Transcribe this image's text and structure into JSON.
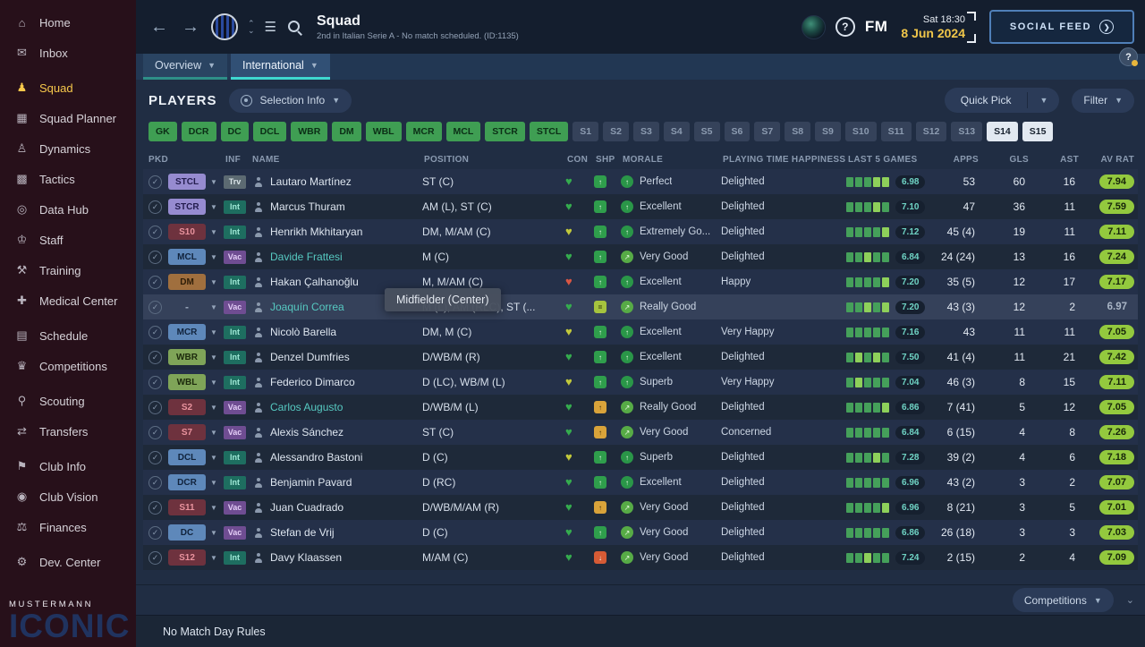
{
  "sidebar": {
    "items": [
      {
        "label": "Home",
        "icon": "home"
      },
      {
        "label": "Inbox",
        "icon": "inbox"
      },
      {
        "label": "Squad",
        "icon": "squad",
        "active": true,
        "group": true
      },
      {
        "label": "Squad Planner",
        "icon": "planner"
      },
      {
        "label": "Dynamics",
        "icon": "dynamics"
      },
      {
        "label": "Tactics",
        "icon": "tactics"
      },
      {
        "label": "Data Hub",
        "icon": "datahub"
      },
      {
        "label": "Staff",
        "icon": "staff"
      },
      {
        "label": "Training",
        "icon": "training"
      },
      {
        "label": "Medical Center",
        "icon": "medical"
      },
      {
        "label": "Schedule",
        "icon": "schedule",
        "group": true
      },
      {
        "label": "Competitions",
        "icon": "competitions"
      },
      {
        "label": "Scouting",
        "icon": "scouting",
        "group": true
      },
      {
        "label": "Transfers",
        "icon": "transfers"
      },
      {
        "label": "Club Info",
        "icon": "clubinfo",
        "group": true
      },
      {
        "label": "Club Vision",
        "icon": "clubvision"
      },
      {
        "label": "Finances",
        "icon": "finances"
      },
      {
        "label": "Dev. Center",
        "icon": "devcenter",
        "group": true
      }
    ],
    "logo_line1": "MUSTERMANN",
    "logo_line2": "ICONIC"
  },
  "header": {
    "title": "Squad",
    "subtitle": "2nd in Italian Serie A - No match scheduled. (ID:1135)",
    "fm_label": "FM",
    "help_label": "?",
    "date_line1": "Sat 18:30",
    "date_line2": "8 Jun 2024",
    "social_feed_label": "SOCIAL FEED"
  },
  "tabs": [
    {
      "label": "Overview",
      "active": false
    },
    {
      "label": "International",
      "active": true
    }
  ],
  "tab_help_label": "?",
  "toolbar": {
    "players_title": "PLAYERS",
    "selection_info_label": "Selection Info",
    "quick_pick_label": "Quick Pick",
    "filter_label": "Filter"
  },
  "chips": [
    {
      "label": "GK",
      "state": "green"
    },
    {
      "label": "DCR",
      "state": "green"
    },
    {
      "label": "DC",
      "state": "green"
    },
    {
      "label": "DCL",
      "state": "green"
    },
    {
      "label": "WBR",
      "state": "green"
    },
    {
      "label": "DM",
      "state": "green"
    },
    {
      "label": "WBL",
      "state": "green"
    },
    {
      "label": "MCR",
      "state": "green"
    },
    {
      "label": "MCL",
      "state": "green"
    },
    {
      "label": "STCR",
      "state": "green"
    },
    {
      "label": "STCL",
      "state": "green"
    },
    {
      "label": "S1",
      "state": "grey"
    },
    {
      "label": "S2",
      "state": "grey"
    },
    {
      "label": "S3",
      "state": "grey"
    },
    {
      "label": "S4",
      "state": "grey"
    },
    {
      "label": "S5",
      "state": "grey"
    },
    {
      "label": "S6",
      "state": "grey"
    },
    {
      "label": "S7",
      "state": "grey"
    },
    {
      "label": "S8",
      "state": "grey"
    },
    {
      "label": "S9",
      "state": "grey"
    },
    {
      "label": "S10",
      "state": "grey"
    },
    {
      "label": "S11",
      "state": "grey"
    },
    {
      "label": "S12",
      "state": "grey"
    },
    {
      "label": "S13",
      "state": "grey"
    },
    {
      "label": "S14",
      "state": "white"
    },
    {
      "label": "S15",
      "state": "white"
    }
  ],
  "table": {
    "columns": [
      "PKD",
      "INF",
      "NAME",
      "POSITION",
      "CON",
      "SHP",
      "MORALE",
      "PLAYING TIME HAPPINESS",
      "LAST 5 GAMES",
      "APPS",
      "GLS",
      "AST",
      "AV RAT"
    ],
    "rows": [
      {
        "pkd": "STCL",
        "pkd_class": "pk-purple",
        "inf": "Trv",
        "inf_class": "inf-grey",
        "name": "Lautaro Martínez",
        "name_teal": false,
        "pos": "ST (C)",
        "con": "green",
        "shp": "green",
        "morale": "Perfect",
        "morale_icon": "up",
        "happiness": "Delighted",
        "bars": [
          2,
          2,
          2,
          3,
          3
        ],
        "l5": "6.98",
        "apps": "53",
        "gls": "60",
        "ast": "16",
        "rat": "7.94",
        "rat_badge": true,
        "highlight": false
      },
      {
        "pkd": "STCR",
        "pkd_class": "pk-purple",
        "inf": "Int",
        "inf_class": "inf-teal",
        "name": "Marcus Thuram",
        "name_teal": false,
        "pos": "AM (L), ST (C)",
        "con": "green",
        "shp": "green",
        "morale": "Excellent",
        "morale_icon": "up",
        "happiness": "Delighted",
        "bars": [
          2,
          2,
          2,
          3,
          2
        ],
        "l5": "7.10",
        "apps": "47",
        "gls": "36",
        "ast": "11",
        "rat": "7.59",
        "rat_badge": true,
        "highlight": false
      },
      {
        "pkd": "S10",
        "pkd_class": "pk-red",
        "inf": "Int",
        "inf_class": "inf-teal",
        "name": "Henrikh Mkhitaryan",
        "name_teal": false,
        "pos": "DM, M/AM (C)",
        "con": "yellow",
        "shp": "green",
        "morale": "Extremely Go...",
        "morale_icon": "up",
        "happiness": "Delighted",
        "bars": [
          2,
          2,
          2,
          2,
          3
        ],
        "l5": "7.12",
        "apps": "45 (4)",
        "gls": "19",
        "ast": "11",
        "rat": "7.11",
        "rat_badge": true,
        "highlight": false
      },
      {
        "pkd": "MCL",
        "pkd_class": "pk-blue",
        "inf": "Vac",
        "inf_class": "inf-purple",
        "name": "Davide Frattesi",
        "name_teal": true,
        "pos": "M (C)",
        "con": "green",
        "shp": "green",
        "morale": "Very Good",
        "morale_icon": "upr",
        "happiness": "Delighted",
        "bars": [
          2,
          2,
          3,
          2,
          2
        ],
        "l5": "6.84",
        "apps": "24 (24)",
        "gls": "13",
        "ast": "16",
        "rat": "7.24",
        "rat_badge": true,
        "highlight": false
      },
      {
        "pkd": "DM",
        "pkd_class": "pk-brown",
        "inf": "Int",
        "inf_class": "inf-teal",
        "name": "Hakan Çalhanoğlu",
        "name_teal": false,
        "pos": "M, M/AM (C)",
        "con": "red",
        "shp": "green",
        "morale": "Excellent",
        "morale_icon": "up",
        "happiness": "Happy",
        "bars": [
          2,
          2,
          2,
          2,
          3
        ],
        "l5": "7.20",
        "apps": "35 (5)",
        "gls": "12",
        "ast": "17",
        "rat": "7.17",
        "rat_badge": true,
        "highlight": false
      },
      {
        "pkd": "-",
        "pkd_class": "pk-dash",
        "inf": "Vac",
        "inf_class": "inf-purple",
        "name": "Joaquín Correa",
        "name_teal": true,
        "pos": "M (L), AM (RLC), ST (...",
        "con": "green",
        "shp": "eq",
        "morale": "Really Good",
        "morale_icon": "upr",
        "happiness": "",
        "bars": [
          2,
          2,
          3,
          2,
          3
        ],
        "l5": "7.20",
        "apps": "43 (3)",
        "gls": "12",
        "ast": "2",
        "rat": "6.97",
        "rat_badge": false,
        "highlight": true
      },
      {
        "pkd": "MCR",
        "pkd_class": "pk-blue",
        "inf": "Int",
        "inf_class": "inf-teal",
        "name": "Nicolò Barella",
        "name_teal": false,
        "pos": "DM, M (C)",
        "con": "yellow",
        "shp": "green",
        "morale": "Excellent",
        "morale_icon": "up",
        "happiness": "Very Happy",
        "bars": [
          2,
          2,
          2,
          2,
          2
        ],
        "l5": "7.16",
        "apps": "43",
        "gls": "11",
        "ast": "11",
        "rat": "7.05",
        "rat_badge": true,
        "highlight": false
      },
      {
        "pkd": "WBR",
        "pkd_class": "pk-green",
        "inf": "Int",
        "inf_class": "inf-teal",
        "name": "Denzel Dumfries",
        "name_teal": false,
        "pos": "D/WB/M (R)",
        "con": "green",
        "shp": "green",
        "morale": "Excellent",
        "morale_icon": "up",
        "happiness": "Delighted",
        "bars": [
          2,
          3,
          2,
          3,
          2
        ],
        "l5": "7.50",
        "apps": "41 (4)",
        "gls": "11",
        "ast": "21",
        "rat": "7.42",
        "rat_badge": true,
        "highlight": false
      },
      {
        "pkd": "WBL",
        "pkd_class": "pk-green",
        "inf": "Int",
        "inf_class": "inf-teal",
        "name": "Federico Dimarco",
        "name_teal": false,
        "pos": "D (LC), WB/M (L)",
        "con": "yellow",
        "shp": "green",
        "morale": "Superb",
        "morale_icon": "up",
        "happiness": "Very Happy",
        "bars": [
          2,
          3,
          2,
          2,
          2
        ],
        "l5": "7.04",
        "apps": "46 (3)",
        "gls": "8",
        "ast": "15",
        "rat": "7.11",
        "rat_badge": true,
        "highlight": false
      },
      {
        "pkd": "S2",
        "pkd_class": "pk-red",
        "inf": "Vac",
        "inf_class": "inf-purple",
        "name": "Carlos Augusto",
        "name_teal": true,
        "pos": "D/WB/M (L)",
        "con": "green",
        "shp": "yellow",
        "morale": "Really Good",
        "morale_icon": "upr",
        "happiness": "Delighted",
        "bars": [
          2,
          2,
          2,
          2,
          3
        ],
        "l5": "6.86",
        "apps": "7 (41)",
        "gls": "5",
        "ast": "12",
        "rat": "7.05",
        "rat_badge": true,
        "highlight": false
      },
      {
        "pkd": "S7",
        "pkd_class": "pk-red",
        "inf": "Vac",
        "inf_class": "inf-purple",
        "name": "Alexis Sánchez",
        "name_teal": false,
        "pos": "ST (C)",
        "con": "green",
        "shp": "yellow",
        "morale": "Very Good",
        "morale_icon": "upr",
        "happiness": "Concerned",
        "bars": [
          2,
          2,
          2,
          2,
          2
        ],
        "l5": "6.84",
        "apps": "6 (15)",
        "gls": "4",
        "ast": "8",
        "rat": "7.26",
        "rat_badge": true,
        "highlight": false
      },
      {
        "pkd": "DCL",
        "pkd_class": "pk-blue",
        "inf": "Int",
        "inf_class": "inf-teal",
        "name": "Alessandro Bastoni",
        "name_teal": false,
        "pos": "D (C)",
        "con": "yellow",
        "shp": "green",
        "morale": "Superb",
        "morale_icon": "up",
        "happiness": "Delighted",
        "bars": [
          2,
          2,
          2,
          3,
          2
        ],
        "l5": "7.28",
        "apps": "39 (2)",
        "gls": "4",
        "ast": "6",
        "rat": "7.18",
        "rat_badge": true,
        "highlight": false
      },
      {
        "pkd": "DCR",
        "pkd_class": "pk-blue",
        "inf": "Int",
        "inf_class": "inf-teal",
        "name": "Benjamin Pavard",
        "name_teal": false,
        "pos": "D (RC)",
        "con": "green",
        "shp": "green",
        "morale": "Excellent",
        "morale_icon": "up",
        "happiness": "Delighted",
        "bars": [
          2,
          2,
          2,
          2,
          2
        ],
        "l5": "6.96",
        "apps": "43 (2)",
        "gls": "3",
        "ast": "2",
        "rat": "7.07",
        "rat_badge": true,
        "highlight": false
      },
      {
        "pkd": "S11",
        "pkd_class": "pk-red",
        "inf": "Vac",
        "inf_class": "inf-purple",
        "name": "Juan Cuadrado",
        "name_teal": false,
        "pos": "D/WB/M/AM (R)",
        "con": "green",
        "shp": "yellow",
        "morale": "Very Good",
        "morale_icon": "upr",
        "happiness": "Delighted",
        "bars": [
          2,
          2,
          2,
          2,
          3
        ],
        "l5": "6.96",
        "apps": "8 (21)",
        "gls": "3",
        "ast": "5",
        "rat": "7.01",
        "rat_badge": true,
        "highlight": false
      },
      {
        "pkd": "DC",
        "pkd_class": "pk-blue",
        "inf": "Vac",
        "inf_class": "inf-purple",
        "name": "Stefan de Vrij",
        "name_teal": false,
        "pos": "D (C)",
        "con": "green",
        "shp": "green",
        "morale": "Very Good",
        "morale_icon": "upr",
        "happiness": "Delighted",
        "bars": [
          2,
          2,
          2,
          2,
          2
        ],
        "l5": "6.86",
        "apps": "26 (18)",
        "gls": "3",
        "ast": "3",
        "rat": "7.03",
        "rat_badge": true,
        "highlight": false
      },
      {
        "pkd": "S12",
        "pkd_class": "pk-red",
        "inf": "Int",
        "inf_class": "inf-teal",
        "name": "Davy Klaassen",
        "name_teal": false,
        "pos": "M/AM (C)",
        "con": "green",
        "shp": "red",
        "morale": "Very Good",
        "morale_icon": "upr",
        "happiness": "Delighted",
        "bars": [
          2,
          2,
          3,
          2,
          2
        ],
        "l5": "7.24",
        "apps": "2 (15)",
        "gls": "2",
        "ast": "4",
        "rat": "7.09",
        "rat_badge": true,
        "highlight": false
      }
    ]
  },
  "tooltip": {
    "text": "Midfielder (Center)"
  },
  "footer": {
    "no_match_rules": "No Match Day Rules",
    "competitions_label": "Competitions"
  },
  "colors": {
    "accent_teal": "#3fd8d0",
    "accent_yellow": "#f0c64a",
    "rating_green": "#93c93e"
  }
}
